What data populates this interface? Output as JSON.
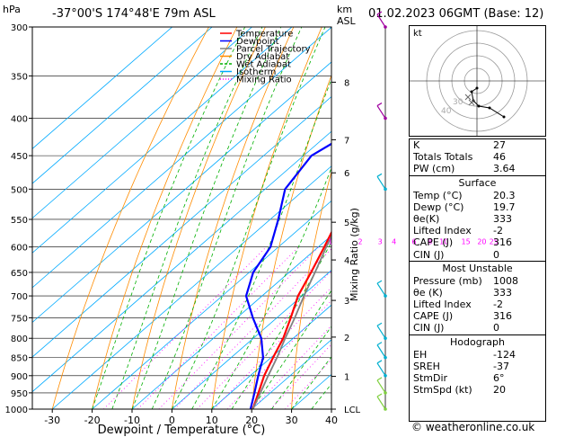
{
  "header": {
    "hpa_label": "hPa",
    "location": "-37°00'S  174°48'E  79m  ASL",
    "km_label": "km",
    "asl_label": "ASL",
    "datetime": "01.02.2023  06GMT  (Base: 12)"
  },
  "chart_data": {
    "type": "line",
    "title": "-37°00'S  174°48'E  79m  ASL",
    "xlabel": "Dewpoint / Temperature (°C)",
    "ylabel": "hPa",
    "y2label": "Mixing Ratio (g/kg)",
    "xlim": [
      -35,
      40
    ],
    "ylim": [
      1000,
      300
    ],
    "x_ticks": [
      -30,
      -20,
      -10,
      0,
      10,
      20,
      30,
      40
    ],
    "pressure_levels": [
      300,
      350,
      400,
      450,
      500,
      550,
      600,
      650,
      700,
      750,
      800,
      850,
      900,
      950,
      1000
    ],
    "km_ticks": [
      {
        "km": "8",
        "p": 357
      },
      {
        "km": "7",
        "p": 428
      },
      {
        "km": "6",
        "p": 475
      },
      {
        "km": "5",
        "p": 555
      },
      {
        "km": "4",
        "p": 625
      },
      {
        "km": "3",
        "p": 710
      },
      {
        "km": "2",
        "p": 797
      },
      {
        "km": "1",
        "p": 902
      },
      {
        "km": "LCL",
        "p": 1000
      }
    ],
    "mixing_ratio_labels": [
      {
        "label": "1",
        "T": -7
      },
      {
        "label": "2",
        "T": 0.5
      },
      {
        "label": "3",
        "T": 5.5
      },
      {
        "label": "4",
        "T": 9
      },
      {
        "label": "6",
        "T": 14
      },
      {
        "label": "8",
        "T": 18
      },
      {
        "label": "10",
        "T": 21.5
      },
      {
        "label": "15",
        "T": 27
      },
      {
        "label": "20",
        "T": 31
      },
      {
        "label": "25",
        "T": 34
      }
    ],
    "legend": [
      "Temperature",
      "Dewpoint",
      "Parcel Trajectory",
      "Dry Adiabat",
      "Wet Adiabat",
      "Isotherm",
      "Mixing Ratio"
    ],
    "legend_colors": [
      "#ff0000",
      "#0000ff",
      "#808080",
      "#ff8c00",
      "#00b000",
      "#00aaff",
      "#ff00ff"
    ],
    "series": [
      {
        "name": "Temperature",
        "color": "#ff0000",
        "points": [
          [
            1000,
            20.3
          ],
          [
            950,
            17
          ],
          [
            900,
            13.5
          ],
          [
            850,
            10.5
          ],
          [
            800,
            7.5
          ],
          [
            750,
            3.5
          ],
          [
            700,
            -1
          ],
          [
            650,
            -4.5
          ],
          [
            600,
            -8.5
          ],
          [
            550,
            -13
          ],
          [
            500,
            -18.5
          ],
          [
            450,
            -25
          ],
          [
            400,
            -32
          ],
          [
            350,
            -41
          ],
          [
            300,
            -50
          ]
        ]
      },
      {
        "name": "Dewpoint",
        "color": "#0000ff",
        "points": [
          [
            1000,
            19.7
          ],
          [
            950,
            16
          ],
          [
            900,
            12
          ],
          [
            850,
            8
          ],
          [
            800,
            2
          ],
          [
            750,
            -6
          ],
          [
            700,
            -14
          ],
          [
            650,
            -19
          ],
          [
            600,
            -22
          ],
          [
            550,
            -28
          ],
          [
            500,
            -35
          ],
          [
            450,
            -38
          ],
          [
            400,
            -33
          ],
          [
            350,
            -42
          ],
          [
            300,
            -52
          ]
        ]
      },
      {
        "name": "Parcel Trajectory",
        "color": "#808080",
        "points": [
          [
            1000,
            20.3
          ],
          [
            950,
            17.5
          ],
          [
            900,
            14.5
          ],
          [
            850,
            11.5
          ],
          [
            800,
            8
          ],
          [
            750,
            4.5
          ],
          [
            700,
            0.5
          ],
          [
            650,
            -3.5
          ],
          [
            600,
            -8
          ],
          [
            550,
            -12.5
          ],
          [
            500,
            -18
          ],
          [
            450,
            -24
          ],
          [
            400,
            -31
          ],
          [
            350,
            -40
          ],
          [
            300,
            -49
          ]
        ]
      }
    ]
  },
  "hodograph": {
    "label": "kt",
    "rings": [
      "10",
      "20",
      "30",
      "40"
    ],
    "ring_labels": [
      "40",
      "30"
    ],
    "trace": [
      [
        0,
        -8
      ],
      [
        -6,
        -12
      ],
      [
        -4,
        -22
      ],
      [
        2,
        -28
      ],
      [
        14,
        -30
      ],
      [
        30,
        -40
      ]
    ],
    "markers": [
      [
        -10,
        -18
      ],
      [
        -6,
        -24
      ]
    ]
  },
  "indices": {
    "top": [
      {
        "label": "K",
        "value": "27"
      },
      {
        "label": "Totals Totals",
        "value": "46"
      },
      {
        "label": "PW (cm)",
        "value": "3.64"
      }
    ],
    "surface": {
      "title": "Surface",
      "rows": [
        {
          "label": "Temp (°C)",
          "value": "20.3"
        },
        {
          "label": "Dewp (°C)",
          "value": "19.7"
        },
        {
          "label": "θe(K)",
          "value": "333"
        },
        {
          "label": "Lifted Index",
          "value": "-2"
        },
        {
          "label": "CAPE (J)",
          "value": "316"
        },
        {
          "label": "CIN (J)",
          "value": "0"
        }
      ]
    },
    "unstable": {
      "title": "Most Unstable",
      "rows": [
        {
          "label": "Pressure (mb)",
          "value": "1008"
        },
        {
          "label": "θe (K)",
          "value": "333"
        },
        {
          "label": "Lifted Index",
          "value": "-2"
        },
        {
          "label": "CAPE (J)",
          "value": "316"
        },
        {
          "label": "CIN (J)",
          "value": "0"
        }
      ]
    },
    "hodo": {
      "title": "Hodograph",
      "rows": [
        {
          "label": "EH",
          "value": "-124"
        },
        {
          "label": "SREH",
          "value": "-37"
        },
        {
          "label": "StmDir",
          "value": "6°"
        },
        {
          "label": "StmSpd (kt)",
          "value": "20"
        }
      ]
    }
  },
  "credit": "© weatheronline.co.uk",
  "colors": {
    "temperature": "#ff0000",
    "dewpoint": "#0000ff",
    "parcel": "#808080",
    "dry_adiabat": "#ff8c00",
    "wet_adiabat": "#00b000",
    "isotherm": "#00aaff",
    "mixing_ratio": "#ff00ff"
  }
}
